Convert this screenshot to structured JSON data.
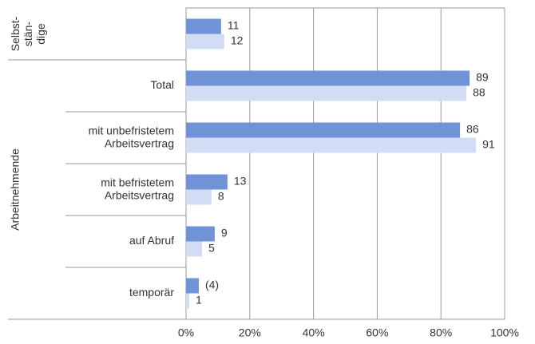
{
  "chart_data": {
    "type": "bar",
    "orientation": "horizontal",
    "group_labels": [
      {
        "label": "Selbst-\nstän-\ndige",
        "categories": [
          0
        ]
      },
      {
        "label": "Arbeitnehmende",
        "categories": [
          1,
          2,
          3,
          4,
          5
        ]
      }
    ],
    "categories": [
      "",
      "Total",
      "mit unbefristetem\nArbeitsvertrag",
      "mit befristetem\nArbeitsvertrag",
      "auf Abruf",
      "temporär"
    ],
    "series": [
      {
        "color": "#6f93d6",
        "values": [
          11,
          89,
          86,
          13,
          9,
          4
        ],
        "value_labels": [
          "11",
          "89",
          "86",
          "13",
          "9",
          "(4)"
        ]
      },
      {
        "color": "#d2ddf5",
        "values": [
          12,
          88,
          91,
          8,
          5,
          1
        ]
      }
    ],
    "xlim": [
      0,
      100
    ],
    "xticks": [
      {
        "value": 0,
        "label": "0%"
      },
      {
        "value": 20,
        "label": "20%"
      },
      {
        "value": 40,
        "label": "40%"
      },
      {
        "value": 60,
        "label": "60%"
      },
      {
        "value": 80,
        "label": "80%"
      },
      {
        "value": 100,
        "label": "100%"
      }
    ],
    "grid": true
  }
}
